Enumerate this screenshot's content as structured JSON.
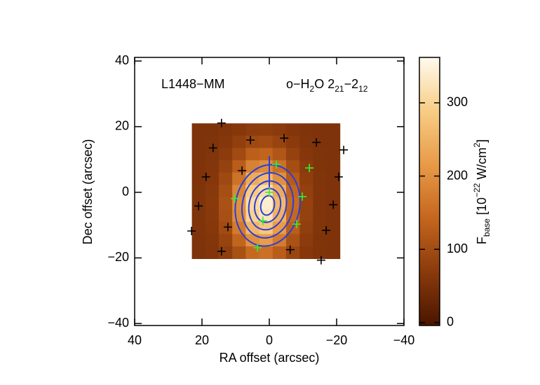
{
  "chart_data": {
    "type": "image",
    "annotations": [
      [
        {
          "text": "L1448−MM"
        }
      ],
      [
        {
          "text": "o−H"
        },
        {
          "text": "2",
          "shift": "sub"
        },
        {
          "text": "O 2"
        },
        {
          "text": "21",
          "shift": "sub"
        },
        {
          "text": "−2"
        },
        {
          "text": "12",
          "shift": "sub"
        }
      ]
    ],
    "xlabel": "RA offset (arcsec)",
    "ylabel": "Dec offset (arcsec)",
    "xlim": [
      40,
      -40
    ],
    "ylim": [
      -40.6,
      41.1
    ],
    "xticks": [
      40,
      20,
      0,
      {
        "value": -20,
        "label": "−20"
      },
      {
        "value": -40,
        "label": "−40"
      }
    ],
    "yticks": [
      {
        "value": -40,
        "label": "−40"
      },
      {
        "value": -20,
        "label": "−20"
      },
      0,
      20,
      40
    ],
    "x_edges": [
      23,
      19,
      15,
      11,
      7,
      3,
      -1,
      -5,
      -9,
      -13,
      -17,
      -21
    ],
    "y_edges": [
      21,
      17.25,
      13.5,
      9.75,
      6,
      2.25,
      -1.5,
      -5.25,
      -9,
      -12.75,
      -16.5,
      -20.25
    ],
    "z": [
      [
        55,
        56,
        59,
        65,
        73,
        75,
        69,
        62,
        57,
        55,
        55
      ],
      [
        55,
        57,
        63,
        78,
        94,
        99,
        86,
        69,
        59,
        56,
        55
      ],
      [
        56,
        59,
        71,
        98,
        131,
        139,
        116,
        83,
        63,
        57,
        55
      ],
      [
        56,
        61,
        82,
        128,
        181,
        196,
        156,
        102,
        69,
        58,
        55
      ],
      [
        56,
        64,
        94,
        161,
        239,
        261,
        202,
        123,
        75,
        59,
        55
      ],
      [
        57,
        67,
        104,
        188,
        287,
        315,
        241,
        141,
        80,
        60,
        56
      ],
      [
        57,
        68,
        109,
        202,
        311,
        341,
        260,
        149,
        83,
        60,
        56
      ],
      [
        57,
        67,
        106,
        195,
        298,
        327,
        250,
        145,
        82,
        60,
        56
      ],
      [
        57,
        65,
        98,
        171,
        257,
        281,
        217,
        130,
        77,
        59,
        56
      ],
      [
        56,
        62,
        86,
        139,
        201,
        218,
        172,
        109,
        71,
        58,
        55
      ],
      [
        56,
        60,
        74,
        107,
        146,
        157,
        128,
        89,
        65,
        57,
        55
      ]
    ],
    "colormap": [
      "#4a1500",
      "#8a3a0c",
      "#c4661e",
      "#e89a48",
      "#f8cc85",
      "#fffbee"
    ],
    "clim": [
      -4,
      362
    ],
    "cticks": [
      0,
      100,
      200,
      300
    ],
    "colorbar_label": [
      {
        "text": "F"
      },
      {
        "text": "base",
        "shift": "sub"
      },
      {
        "text": " [10"
      },
      {
        "text": "−22",
        "shift": "super"
      },
      {
        "text": " W/cm"
      },
      {
        "text": "2",
        "shift": "super"
      },
      {
        "text": "]"
      }
    ],
    "contours": {
      "color": "#2a3fd6",
      "center": [
        0.5,
        -4
      ],
      "tilt": 12,
      "rx": [
        9.5,
        7.5,
        5.5,
        3.8,
        2
      ],
      "ry": [
        12.5,
        10,
        7.5,
        5.2,
        3
      ],
      "stem": {
        "x": [
          0,
          0
        ],
        "y": [
          11,
          1.5
        ]
      }
    },
    "scatter": [
      {
        "color": "#000000",
        "x": [
          14.2,
          16.7,
          5.6,
          -4.4,
          -14,
          -22.1,
          18.8,
          8.1,
          -20.6,
          21,
          -19,
          12.3,
          -16.9,
          23.1,
          14.2,
          -6.2,
          -15.4
        ],
        "y": [
          21.1,
          13.5,
          15.9,
          16.5,
          15.2,
          12.9,
          4.7,
          6.6,
          4.7,
          -4.2,
          -3.8,
          -10.6,
          -11.6,
          -11.8,
          -18,
          -17.5,
          -20.7
        ]
      },
      {
        "color": "#33ee33",
        "x": [
          -2.1,
          -11.9,
          0,
          10.2,
          -9.8,
          1.9,
          -8.1,
          3.5
        ],
        "y": [
          8.5,
          7.4,
          0,
          -1.9,
          -1.3,
          -8.7,
          -9.7,
          -16.9
        ]
      }
    ]
  }
}
